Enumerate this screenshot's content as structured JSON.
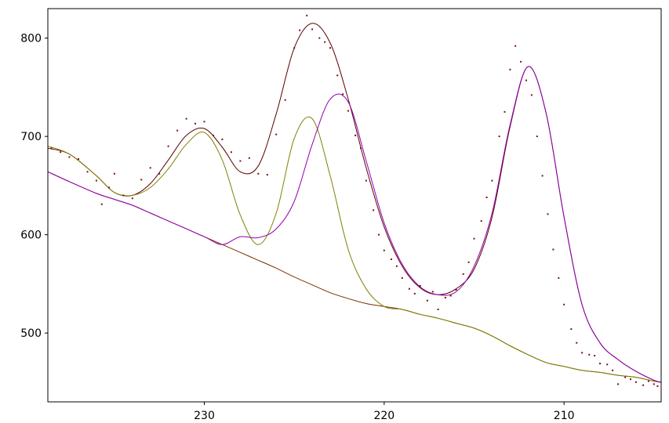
{
  "chart_data": {
    "type": "line",
    "title": "",
    "xlabel": "",
    "ylabel": "",
    "x_reversed": true,
    "xlim": [
      238.7,
      204.6
    ],
    "ylim": [
      430,
      830
    ],
    "x_ticks": [
      {
        "value": 230,
        "label": "230"
      },
      {
        "value": 220,
        "label": "220"
      },
      {
        "value": 210,
        "label": "210"
      }
    ],
    "y_ticks": [
      {
        "value": 500,
        "label": "500"
      },
      {
        "value": 600,
        "label": "600"
      },
      {
        "value": 700,
        "label": "700"
      },
      {
        "value": 800,
        "label": "800"
      }
    ],
    "grid": false,
    "legend": "none",
    "x": [
      238.7,
      237.5,
      236.0,
      235.0,
      234.0,
      233.0,
      232.0,
      231.0,
      230.0,
      229.0,
      228.0,
      227.0,
      226.0,
      225.0,
      224.0,
      223.0,
      222.0,
      221.0,
      220.0,
      219.0,
      218.0,
      217.0,
      216.0,
      215.0,
      214.0,
      213.0,
      212.0,
      211.0,
      210.0,
      209.0,
      208.0,
      207.0,
      206.0,
      205.0,
      204.6
    ],
    "series": [
      {
        "role": "envelope",
        "color": "#5a0000",
        "values": [
          688,
          682,
          660,
          643,
          640,
          652,
          676,
          701,
          708,
          689,
          664,
          670,
          723,
          790,
          815,
          795,
          738,
          668,
          608,
          568,
          546,
          539,
          545,
          565,
          618,
          710,
          771,
          724,
          618,
          529,
          490,
          473,
          461,
          452,
          450
        ]
      },
      {
        "role": "baseline",
        "color": "#7a3000",
        "values": [
          664,
          654,
          642,
          636,
          630,
          622,
          614,
          606,
          598,
          590,
          582,
          574,
          566,
          557,
          549,
          541,
          535,
          530,
          527,
          524,
          519,
          515,
          510,
          505,
          497,
          487,
          478,
          470,
          466,
          462,
          460,
          457,
          455,
          451,
          450
        ]
      },
      {
        "role": "component",
        "color": "#808000",
        "values": [
          690,
          682,
          660,
          643,
          640,
          648,
          667,
          692,
          704,
          676,
          620,
          590,
          622,
          698,
          718,
          660,
          585,
          545,
          527,
          524,
          519,
          515,
          510,
          505,
          497,
          487,
          478,
          470,
          466,
          462,
          460,
          457,
          455,
          451,
          450
        ]
      },
      {
        "role": "component",
        "color": "#9000b0",
        "values": [
          664,
          654,
          642,
          636,
          630,
          622,
          614,
          606,
          598,
          590,
          598,
          597,
          606,
          634,
          692,
          738,
          735,
          675,
          612,
          570,
          547,
          539,
          542,
          568,
          622,
          712,
          771,
          724,
          618,
          529,
          490,
          473,
          461,
          452,
          450
        ]
      }
    ],
    "raw_points": {
      "color": "#7a1010",
      "x": [
        238.5,
        238.0,
        237.5,
        237.0,
        236.5,
        236.0,
        235.7,
        235.3,
        235.0,
        234.5,
        234.0,
        233.5,
        233.0,
        232.5,
        232.0,
        231.5,
        231.0,
        230.5,
        230.0,
        229.5,
        229.0,
        228.5,
        228.0,
        227.5,
        227.0,
        226.5,
        226.0,
        225.5,
        225.0,
        224.7,
        224.3,
        224.0,
        223.6,
        223.3,
        223.0,
        222.6,
        222.3,
        222.0,
        221.6,
        221.3,
        221.0,
        220.6,
        220.3,
        220.0,
        219.6,
        219.3,
        219.0,
        218.6,
        218.3,
        218.0,
        217.6,
        217.3,
        217.0,
        216.6,
        216.3,
        216.0,
        215.6,
        215.3,
        215.0,
        214.6,
        214.3,
        214.0,
        213.6,
        213.3,
        213.0,
        212.7,
        212.4,
        212.1,
        211.8,
        211.5,
        211.2,
        210.9,
        210.6,
        210.3,
        210.0,
        209.6,
        209.3,
        209.0,
        208.6,
        208.3,
        208.0,
        207.6,
        207.3,
        207.0,
        206.6,
        206.3,
        206.0,
        205.6,
        205.3,
        205.0,
        204.8
      ],
      "y": [
        688,
        684,
        679,
        677,
        664,
        655,
        631,
        648,
        662,
        640,
        637,
        656,
        668,
        662,
        690,
        706,
        718,
        713,
        715,
        701,
        697,
        684,
        675,
        678,
        662,
        661,
        702,
        737,
        790,
        808,
        823,
        809,
        800,
        796,
        790,
        762,
        743,
        726,
        701,
        688,
        655,
        625,
        600,
        584,
        575,
        568,
        556,
        545,
        540,
        548,
        533,
        542,
        524,
        536,
        538,
        544,
        560,
        572,
        596,
        614,
        638,
        655,
        700,
        725,
        768,
        792,
        776,
        757,
        742,
        700,
        660,
        621,
        585,
        556,
        529,
        504,
        490,
        480,
        478,
        477,
        469,
        468,
        462,
        448,
        455,
        453,
        450,
        447,
        451,
        448,
        446
      ]
    }
  }
}
